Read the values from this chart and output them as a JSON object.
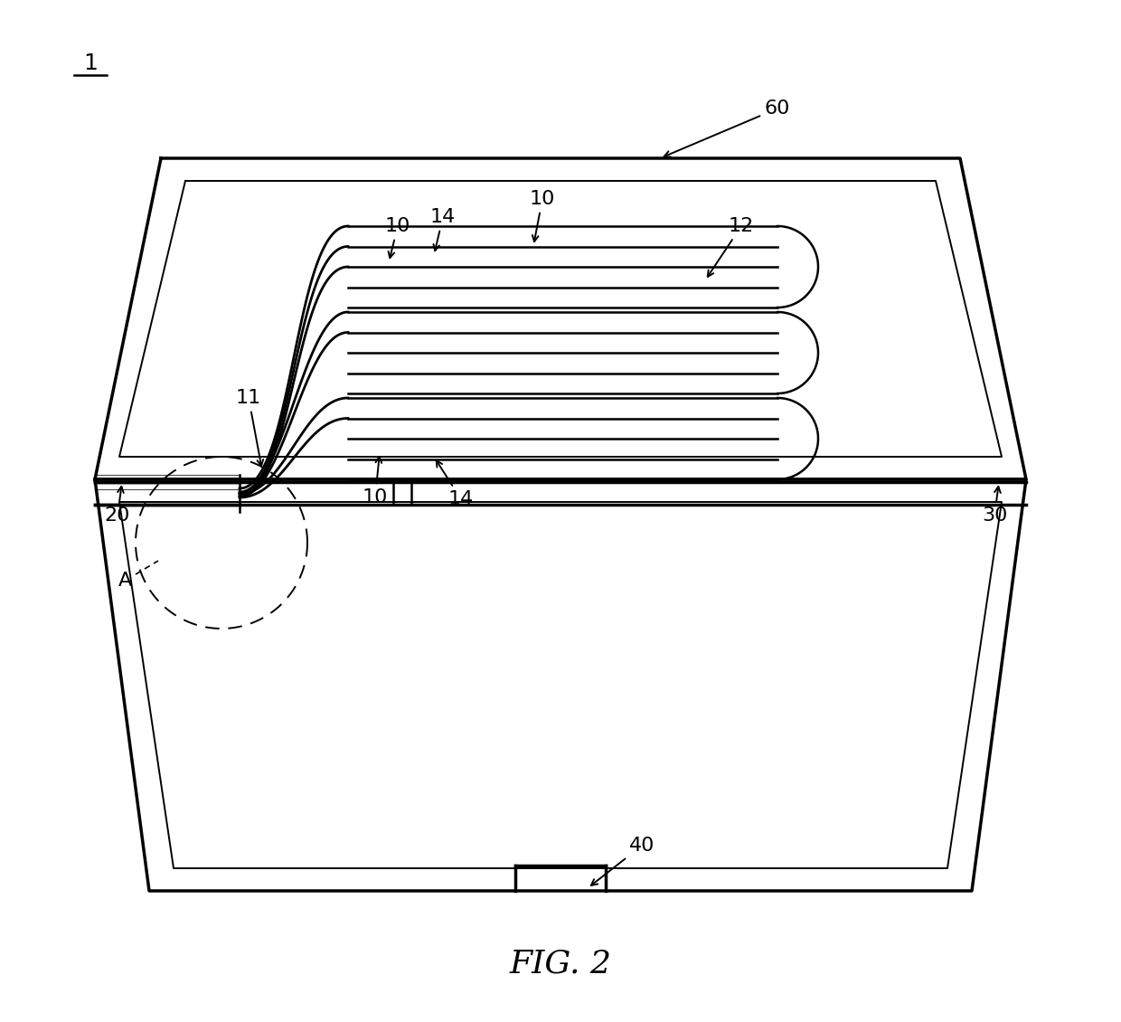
{
  "bg_color": "#ffffff",
  "line_color": "#000000",
  "fig_label": "FIG. 2",
  "lw_thick": 2.5,
  "lw_thin": 1.4,
  "lw_med": 1.8,
  "lw_lead": 2.0,
  "fontsize": 16
}
